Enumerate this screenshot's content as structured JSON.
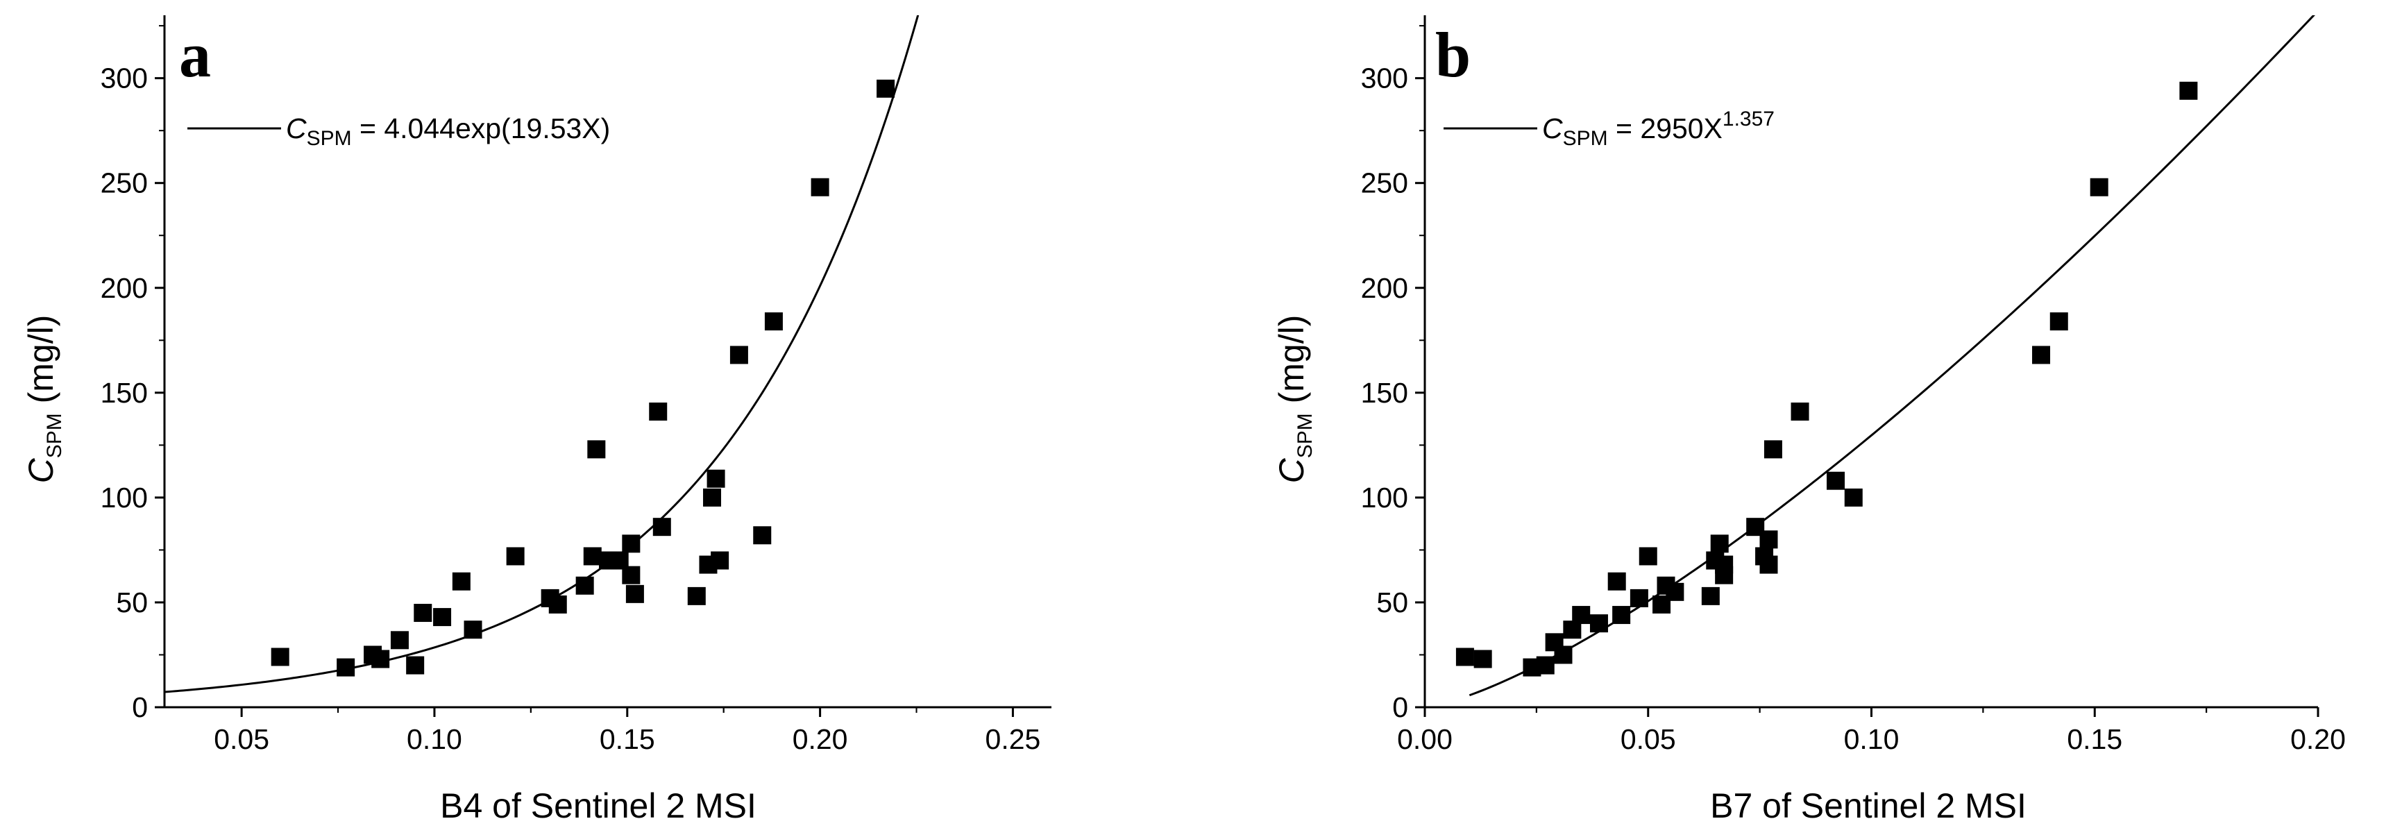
{
  "chart_data": [
    {
      "type": "scatter",
      "panel_label": "a",
      "xlabel": "B4 of Sentinel 2 MSI",
      "ylabel": {
        "main": "C",
        "sub": "SPM",
        "unit": " (mg/l)"
      },
      "xlim": [
        0.03,
        0.26
      ],
      "ylim": [
        0,
        330
      ],
      "xticks": [
        0.05,
        0.1,
        0.15,
        0.2,
        0.25
      ],
      "xtick_labels": [
        "0.05",
        "0.10",
        "0.15",
        "0.20",
        "0.25"
      ],
      "yticks": [
        0,
        50,
        100,
        150,
        200,
        250,
        300
      ],
      "ytick_labels": [
        "0",
        "50",
        "100",
        "150",
        "200",
        "250",
        "300"
      ],
      "legend": {
        "lhs_main": "C",
        "lhs_sub": "SPM",
        "rhs": " = 4.044exp(19.53X)",
        "rhs_sup": "",
        "position": "top-left"
      },
      "fit": {
        "kind": "exp",
        "a": 4.044,
        "b": 19.53,
        "x_range": [
          0.03,
          0.226
        ]
      },
      "points": [
        [
          0.06,
          24
        ],
        [
          0.077,
          19
        ],
        [
          0.084,
          25
        ],
        [
          0.086,
          23
        ],
        [
          0.091,
          32
        ],
        [
          0.095,
          20
        ],
        [
          0.097,
          45
        ],
        [
          0.102,
          43
        ],
        [
          0.107,
          60
        ],
        [
          0.11,
          37
        ],
        [
          0.121,
          72
        ],
        [
          0.13,
          52
        ],
        [
          0.132,
          49
        ],
        [
          0.139,
          58
        ],
        [
          0.141,
          72
        ],
        [
          0.142,
          123
        ],
        [
          0.145,
          70
        ],
        [
          0.148,
          70
        ],
        [
          0.151,
          63
        ],
        [
          0.151,
          78
        ],
        [
          0.152,
          54
        ],
        [
          0.158,
          141
        ],
        [
          0.159,
          86
        ],
        [
          0.168,
          53
        ],
        [
          0.171,
          68
        ],
        [
          0.172,
          100
        ],
        [
          0.173,
          109
        ],
        [
          0.174,
          70
        ],
        [
          0.179,
          168
        ],
        [
          0.185,
          82
        ],
        [
          0.188,
          184
        ],
        [
          0.2,
          248
        ],
        [
          0.217,
          295
        ]
      ]
    },
    {
      "type": "scatter",
      "panel_label": "b",
      "xlabel": "B7 of Sentinel 2 MSI",
      "ylabel": {
        "main": "C",
        "sub": "SPM",
        "unit": " (mg/l)"
      },
      "xlim": [
        0.0,
        0.2
      ],
      "ylim": [
        0,
        330
      ],
      "xticks": [
        0.0,
        0.05,
        0.1,
        0.15,
        0.2
      ],
      "xtick_labels": [
        "0.00",
        "0.05",
        "0.10",
        "0.15",
        "0.20"
      ],
      "yticks": [
        0,
        50,
        100,
        150,
        200,
        250,
        300
      ],
      "ytick_labels": [
        "0",
        "50",
        "100",
        "150",
        "200",
        "250",
        "300"
      ],
      "legend": {
        "lhs_main": "C",
        "lhs_sub": "SPM",
        "rhs": " = 2950X",
        "rhs_sup": "1.357",
        "position": "top-left"
      },
      "fit": {
        "kind": "power",
        "a": 2950,
        "b": 1.357,
        "x_range": [
          0.01,
          0.2
        ]
      },
      "points": [
        [
          0.009,
          24
        ],
        [
          0.013,
          23
        ],
        [
          0.024,
          19
        ],
        [
          0.027,
          20
        ],
        [
          0.029,
          31
        ],
        [
          0.031,
          25
        ],
        [
          0.033,
          37
        ],
        [
          0.035,
          44
        ],
        [
          0.039,
          40
        ],
        [
          0.043,
          60
        ],
        [
          0.044,
          44
        ],
        [
          0.048,
          52
        ],
        [
          0.05,
          72
        ],
        [
          0.053,
          49
        ],
        [
          0.054,
          58
        ],
        [
          0.056,
          55
        ],
        [
          0.064,
          53
        ],
        [
          0.065,
          70
        ],
        [
          0.066,
          78
        ],
        [
          0.067,
          63
        ],
        [
          0.067,
          68
        ],
        [
          0.074,
          86
        ],
        [
          0.076,
          72
        ],
        [
          0.077,
          80
        ],
        [
          0.077,
          68
        ],
        [
          0.078,
          123
        ],
        [
          0.084,
          141
        ],
        [
          0.092,
          108
        ],
        [
          0.096,
          100
        ],
        [
          0.138,
          168
        ],
        [
          0.142,
          184
        ],
        [
          0.151,
          248
        ],
        [
          0.171,
          294
        ]
      ]
    }
  ]
}
